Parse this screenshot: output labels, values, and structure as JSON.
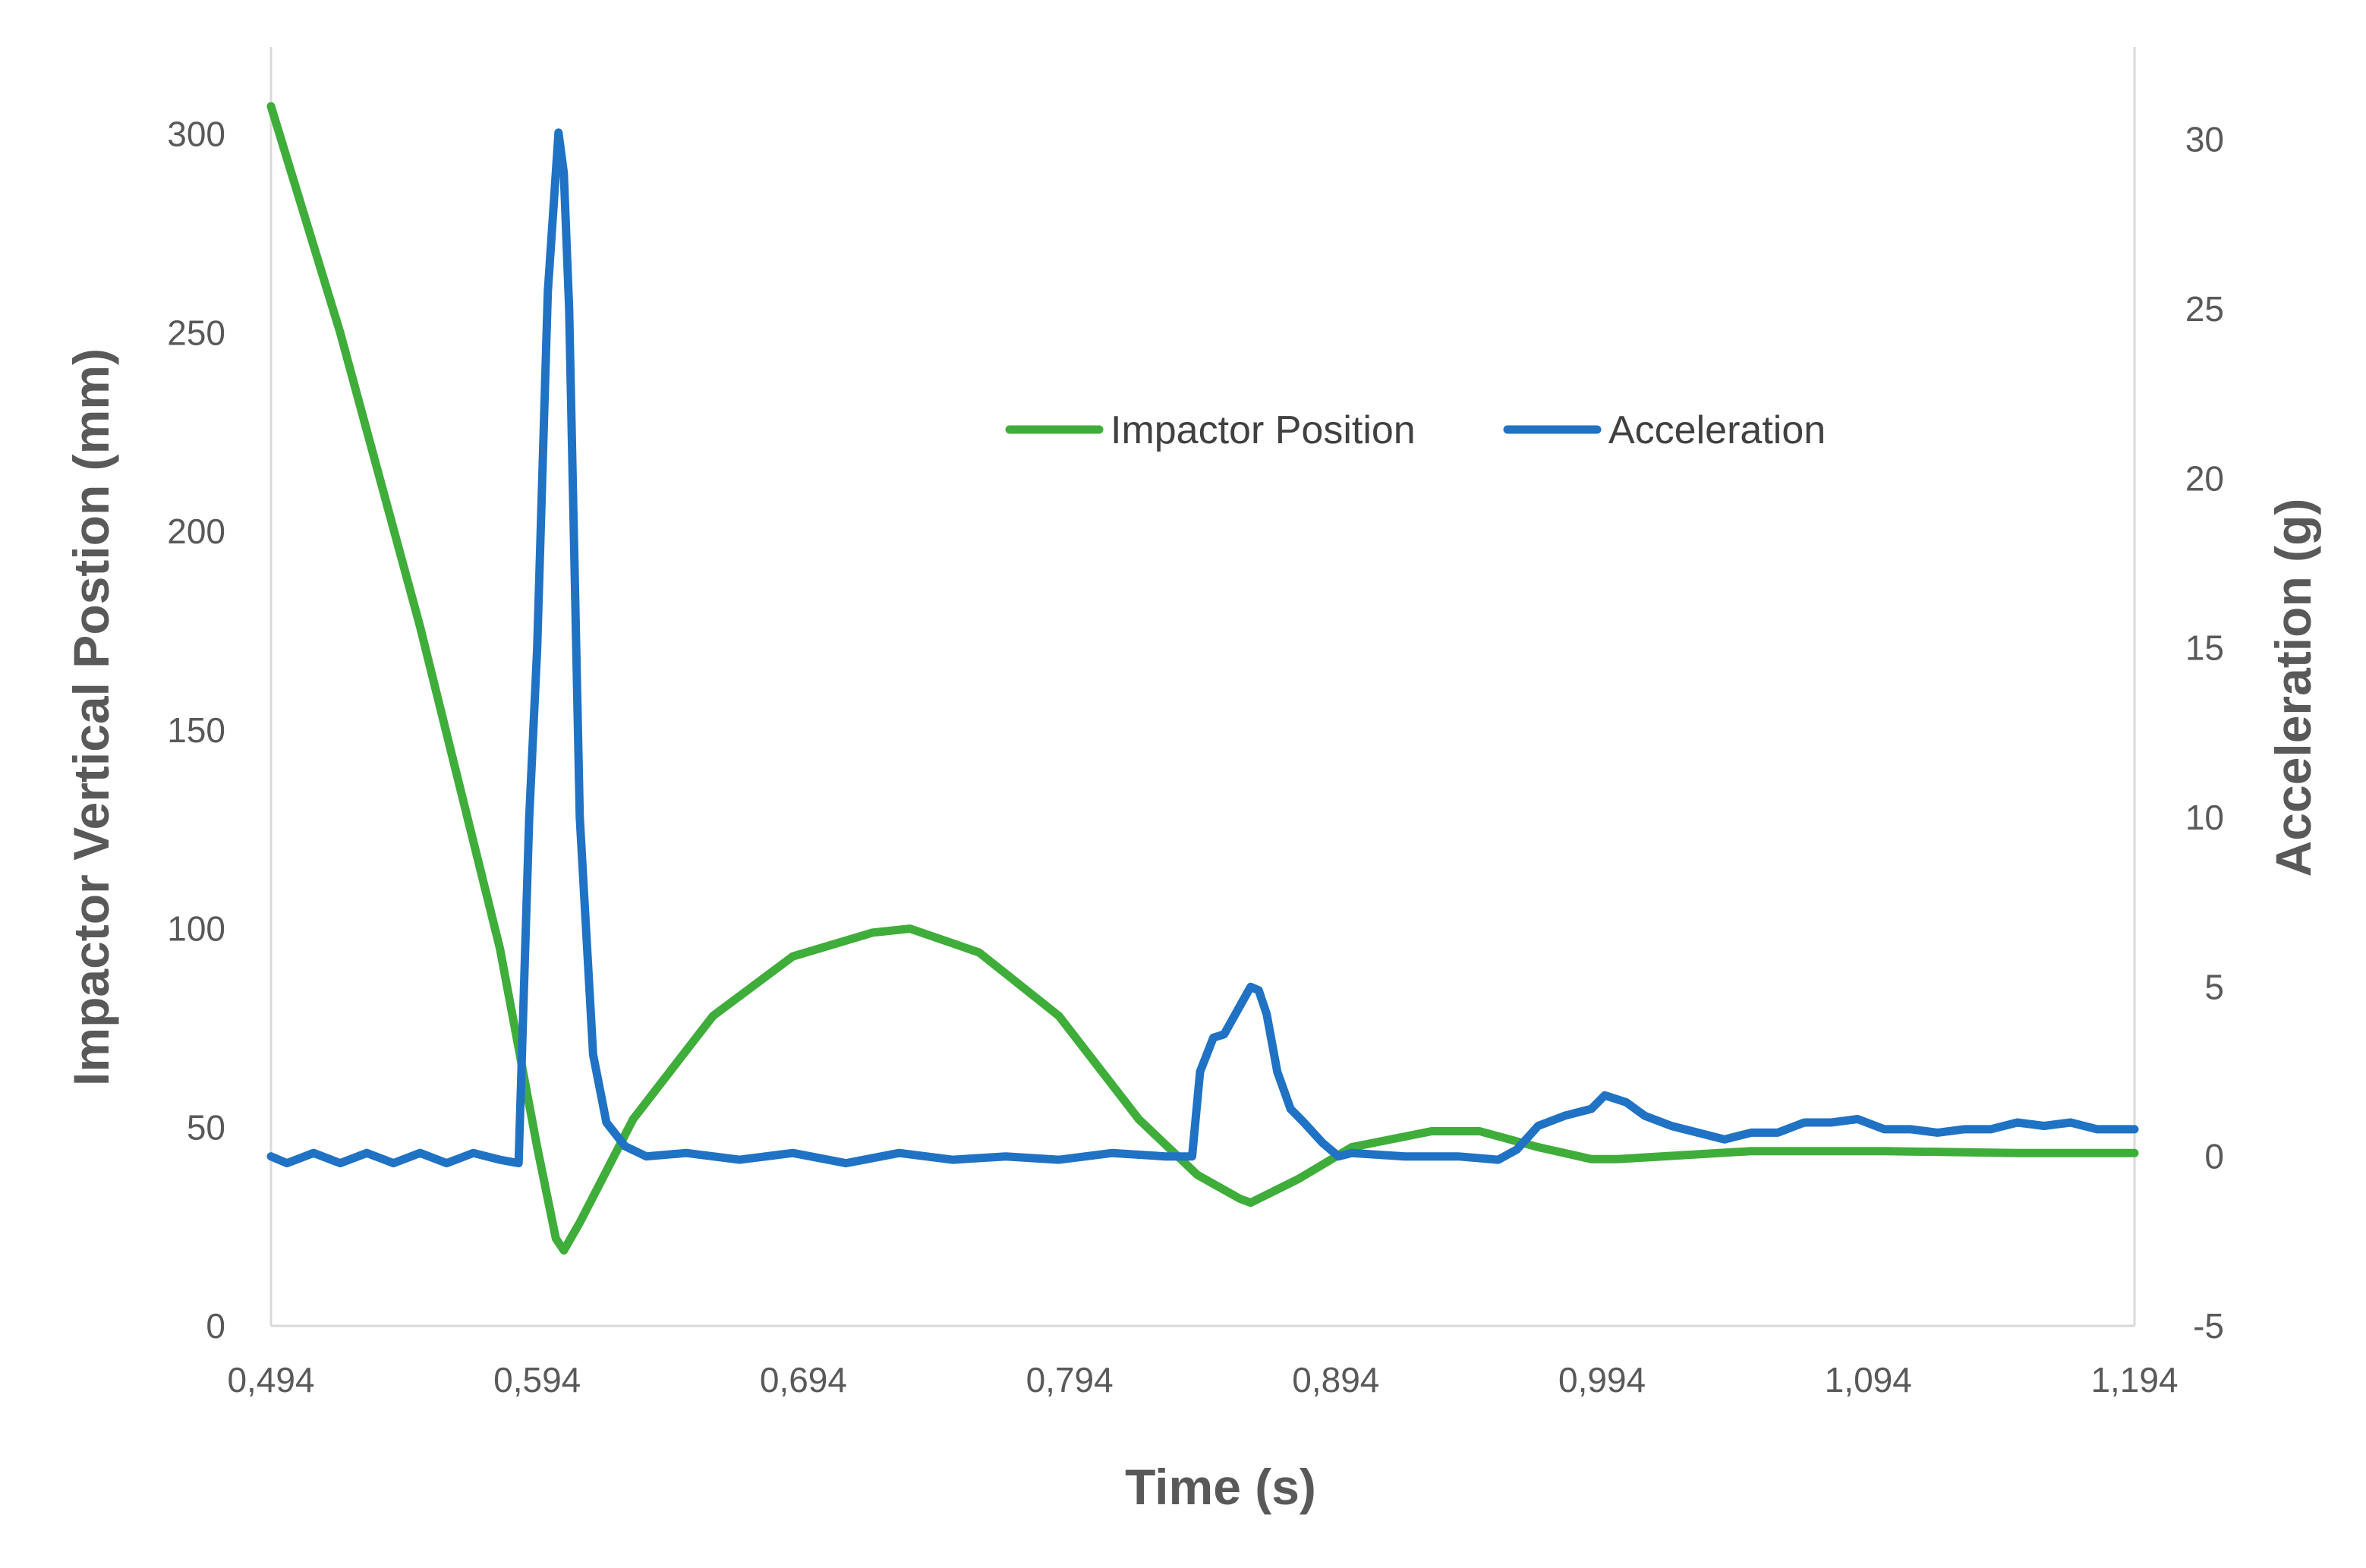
{
  "chart_data": {
    "type": "line",
    "xlabel": "Time (s)",
    "ylabel": "Impactor Vertical Postion (mm)",
    "y2label": "Acceleration (g)",
    "xlim": [
      0.494,
      1.194
    ],
    "ylim": [
      0,
      320
    ],
    "y2lim": [
      -5,
      32.5
    ],
    "x_ticks": [
      0.494,
      0.594,
      0.694,
      0.794,
      0.894,
      0.994,
      1.094,
      1.194
    ],
    "x_tick_labels": [
      "0,494",
      "0,594",
      "0,694",
      "0,794",
      "0,894",
      "0,994",
      "1,094",
      "1,194"
    ],
    "y_ticks": [
      0,
      50,
      100,
      150,
      200,
      250,
      300
    ],
    "y_tick_labels": [
      "0",
      "50",
      "100",
      "150",
      "200",
      "250",
      "300"
    ],
    "y2_ticks": [
      -5,
      0,
      5,
      10,
      15,
      20,
      25,
      30
    ],
    "y2_tick_labels": [
      "-5",
      "0",
      "5",
      "10",
      "15",
      "20",
      "25",
      "30"
    ],
    "grid": false,
    "legend_position": "top-center",
    "series": [
      {
        "name": "Impactor Position",
        "axis": "left",
        "color": "#3fad3a",
        "x": [
          0.494,
          0.52,
          0.55,
          0.58,
          0.594,
          0.601,
          0.604,
          0.61,
          0.63,
          0.66,
          0.69,
          0.72,
          0.734,
          0.76,
          0.79,
          0.82,
          0.842,
          0.858,
          0.862,
          0.88,
          0.9,
          0.93,
          0.948,
          0.97,
          0.99,
          1.0,
          1.05,
          1.1,
          1.15,
          1.194
        ],
        "y": [
          307,
          250,
          176,
          95,
          45,
          22,
          19,
          26,
          52,
          78,
          93,
          99,
          100,
          94,
          78,
          52,
          38,
          32,
          31,
          37,
          45,
          49,
          49,
          45,
          42,
          42,
          44,
          44,
          43.5,
          43.5
        ]
      },
      {
        "name": "Acceleration",
        "axis": "right",
        "color": "#1f72c4",
        "x": [
          0.494,
          0.5,
          0.51,
          0.52,
          0.53,
          0.54,
          0.55,
          0.56,
          0.57,
          0.58,
          0.587,
          0.591,
          0.594,
          0.598,
          0.602,
          0.604,
          0.606,
          0.61,
          0.615,
          0.62,
          0.627,
          0.635,
          0.65,
          0.67,
          0.69,
          0.71,
          0.73,
          0.75,
          0.77,
          0.79,
          0.81,
          0.83,
          0.84,
          0.843,
          0.848,
          0.852,
          0.857,
          0.862,
          0.865,
          0.868,
          0.872,
          0.877,
          0.882,
          0.889,
          0.895,
          0.9,
          0.92,
          0.94,
          0.955,
          0.962,
          0.97,
          0.98,
          0.99,
          0.995,
          1.003,
          1.01,
          1.02,
          1.04,
          1.05,
          1.06,
          1.07,
          1.08,
          1.09,
          1.1,
          1.11,
          1.12,
          1.13,
          1.14,
          1.15,
          1.16,
          1.17,
          1.18,
          1.194
        ],
        "y": [
          0.0,
          -0.2,
          0.1,
          -0.2,
          0.1,
          -0.2,
          0.1,
          -0.2,
          0.1,
          -0.1,
          -0.2,
          10.0,
          15.0,
          25.5,
          30.2,
          29.0,
          25.0,
          10.0,
          3.0,
          1.0,
          0.3,
          0.0,
          0.1,
          -0.1,
          0.1,
          -0.2,
          0.1,
          -0.1,
          0.0,
          -0.1,
          0.1,
          0.0,
          0.0,
          2.5,
          3.5,
          3.6,
          4.3,
          5.0,
          4.9,
          4.2,
          2.5,
          1.4,
          1.0,
          0.4,
          0.0,
          0.1,
          0.0,
          0.0,
          -0.1,
          0.2,
          0.9,
          1.2,
          1.4,
          1.8,
          1.6,
          1.2,
          0.9,
          0.5,
          0.7,
          0.7,
          1.0,
          1.0,
          1.1,
          0.8,
          0.8,
          0.7,
          0.8,
          0.8,
          1.0,
          0.9,
          1.0,
          0.8,
          0.8
        ]
      }
    ]
  }
}
